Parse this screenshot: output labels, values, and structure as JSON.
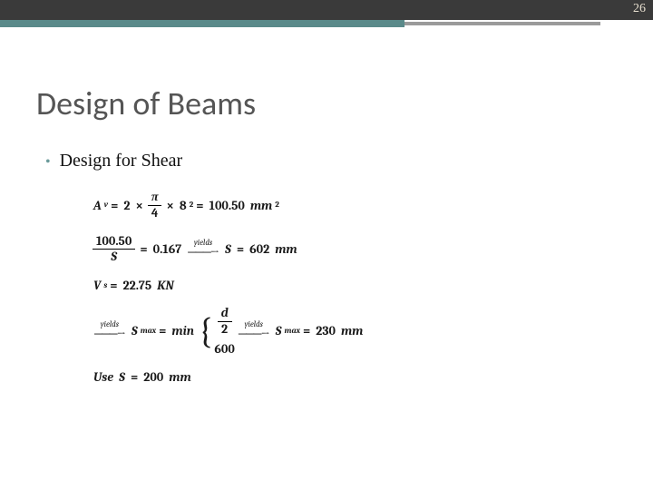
{
  "page_number": "26",
  "accent": {
    "teal_color": "#5a8a8a",
    "gray_color": "#9a9a9a",
    "teal_width_pct": 62,
    "gray_left_pct": 62,
    "gray_width_pct": 30
  },
  "title": "Design of Beams",
  "bullet": {
    "marker": "•",
    "text": "Design for Shear"
  },
  "equations": {
    "eq1": {
      "lhs_var": "A",
      "lhs_sub": "v",
      "eq": "=",
      "two": "2",
      "times": "×",
      "pi": "π",
      "four": "4",
      "eight": "8",
      "exp": "2",
      "result": "100.50",
      "unit": "mm",
      "unit_exp": "2"
    },
    "eq2": {
      "num": "100.50",
      "den": "S",
      "eq": "=",
      "val": "0.167",
      "arrow_label": "yields",
      "S": "S",
      "result": "602",
      "unit": "mm"
    },
    "eq3": {
      "V": "V",
      "sub": "s",
      "eq": "=",
      "val": "22.75",
      "unit": "KN"
    },
    "eq4": {
      "arrow1_label": "yields",
      "S": "S",
      "sub": "max",
      "eq": "=",
      "min": "min",
      "opt1_num": "d",
      "opt1_den": "2",
      "opt2": "600",
      "arrow2_label": "yields",
      "result": "230",
      "unit": "mm"
    },
    "eq5": {
      "use": "Use",
      "S": "S",
      "eq": "=",
      "val": "200",
      "unit": "mm"
    }
  }
}
